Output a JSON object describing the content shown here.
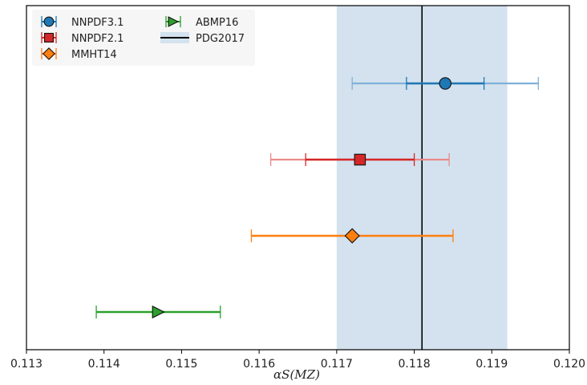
{
  "chart_data": {
    "type": "errorbar",
    "xlabel": "αS(MZ)",
    "xlim": [
      0.113,
      0.12
    ],
    "x_ticks": [
      "0.113",
      "0.114",
      "0.115",
      "0.116",
      "0.117",
      "0.118",
      "0.119",
      "0.120"
    ],
    "x_tick_values": [
      0.113,
      0.114,
      0.115,
      0.116,
      0.117,
      0.118,
      0.119,
      0.12
    ],
    "grid": false,
    "legend_position": "top-left",
    "series": [
      {
        "name": "NNPDF3.1",
        "central": 0.1184,
        "inner_range": [
          0.1179,
          0.1189
        ],
        "outer_range": [
          0.1172,
          0.1196
        ],
        "marker": "circle",
        "color": "#1f77b4",
        "outer_color": "#7fb0d8"
      },
      {
        "name": "NNPDF2.1",
        "central": 0.1173,
        "inner_range": [
          0.1166,
          0.118
        ],
        "outer_range": [
          0.11615,
          0.11845
        ],
        "marker": "square",
        "color": "#d62728",
        "outer_color": "#ea8a8b"
      },
      {
        "name": "MMHT14",
        "central": 0.1172,
        "inner_range": [
          0.1159,
          0.1185
        ],
        "marker": "diamond",
        "color": "#ff7f0e"
      },
      {
        "name": "ABMP16",
        "central": 0.1147,
        "inner_range": [
          0.1139,
          0.1155
        ],
        "marker": "triangle-right",
        "color": "#2ca02c"
      }
    ],
    "reference": {
      "name": "PDG2017",
      "central": 0.1181,
      "band": [
        0.117,
        0.1192
      ],
      "line_color": "#000000",
      "band_color": "#d3e2ee"
    }
  }
}
